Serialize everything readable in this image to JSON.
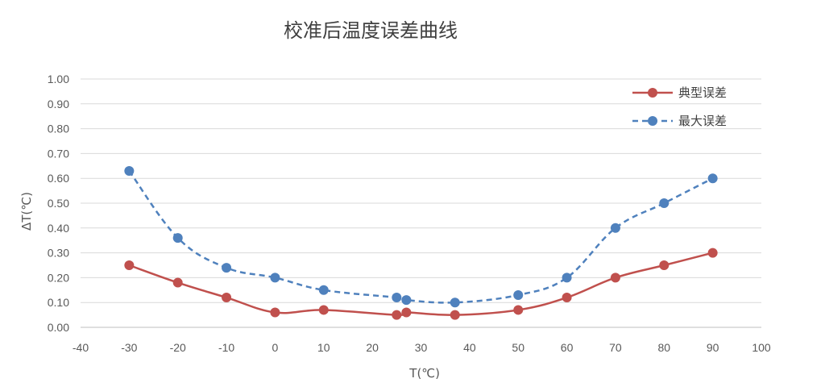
{
  "chart_data": {
    "type": "line",
    "title": "校准后温度误差曲线",
    "xlabel": "T(℃)",
    "ylabel": "ΔT(℃)",
    "xlim": [
      -40,
      100
    ],
    "ylim": [
      0,
      1.0
    ],
    "x_ticks": [
      "-40",
      "-30",
      "-20",
      "-10",
      "0",
      "10",
      "20",
      "30",
      "40",
      "50",
      "60",
      "70",
      "80",
      "90",
      "100"
    ],
    "y_ticks": [
      "0.00",
      "0.10",
      "0.20",
      "0.30",
      "0.40",
      "0.50",
      "0.60",
      "0.70",
      "0.80",
      "0.90",
      "1.00"
    ],
    "grid": "horizontal",
    "legend": "top-right",
    "series": [
      {
        "name": "典型误差",
        "color": "#c0504d",
        "line_style": "solid",
        "x": [
          -30,
          -20,
          -10,
          0,
          10,
          25,
          27,
          37,
          50,
          60,
          70,
          80,
          90
        ],
        "y": [
          0.25,
          0.18,
          0.12,
          0.06,
          0.07,
          0.05,
          0.06,
          0.05,
          0.07,
          0.12,
          0.2,
          0.25,
          0.3
        ]
      },
      {
        "name": "最大误差",
        "color": "#4f81bd",
        "line_style": "dashed",
        "x": [
          -30,
          -20,
          -10,
          0,
          10,
          25,
          27,
          37,
          50,
          60,
          70,
          80,
          90
        ],
        "y": [
          0.63,
          0.36,
          0.24,
          0.2,
          0.15,
          0.12,
          0.11,
          0.1,
          0.13,
          0.2,
          0.4,
          0.5,
          0.6
        ]
      }
    ]
  }
}
